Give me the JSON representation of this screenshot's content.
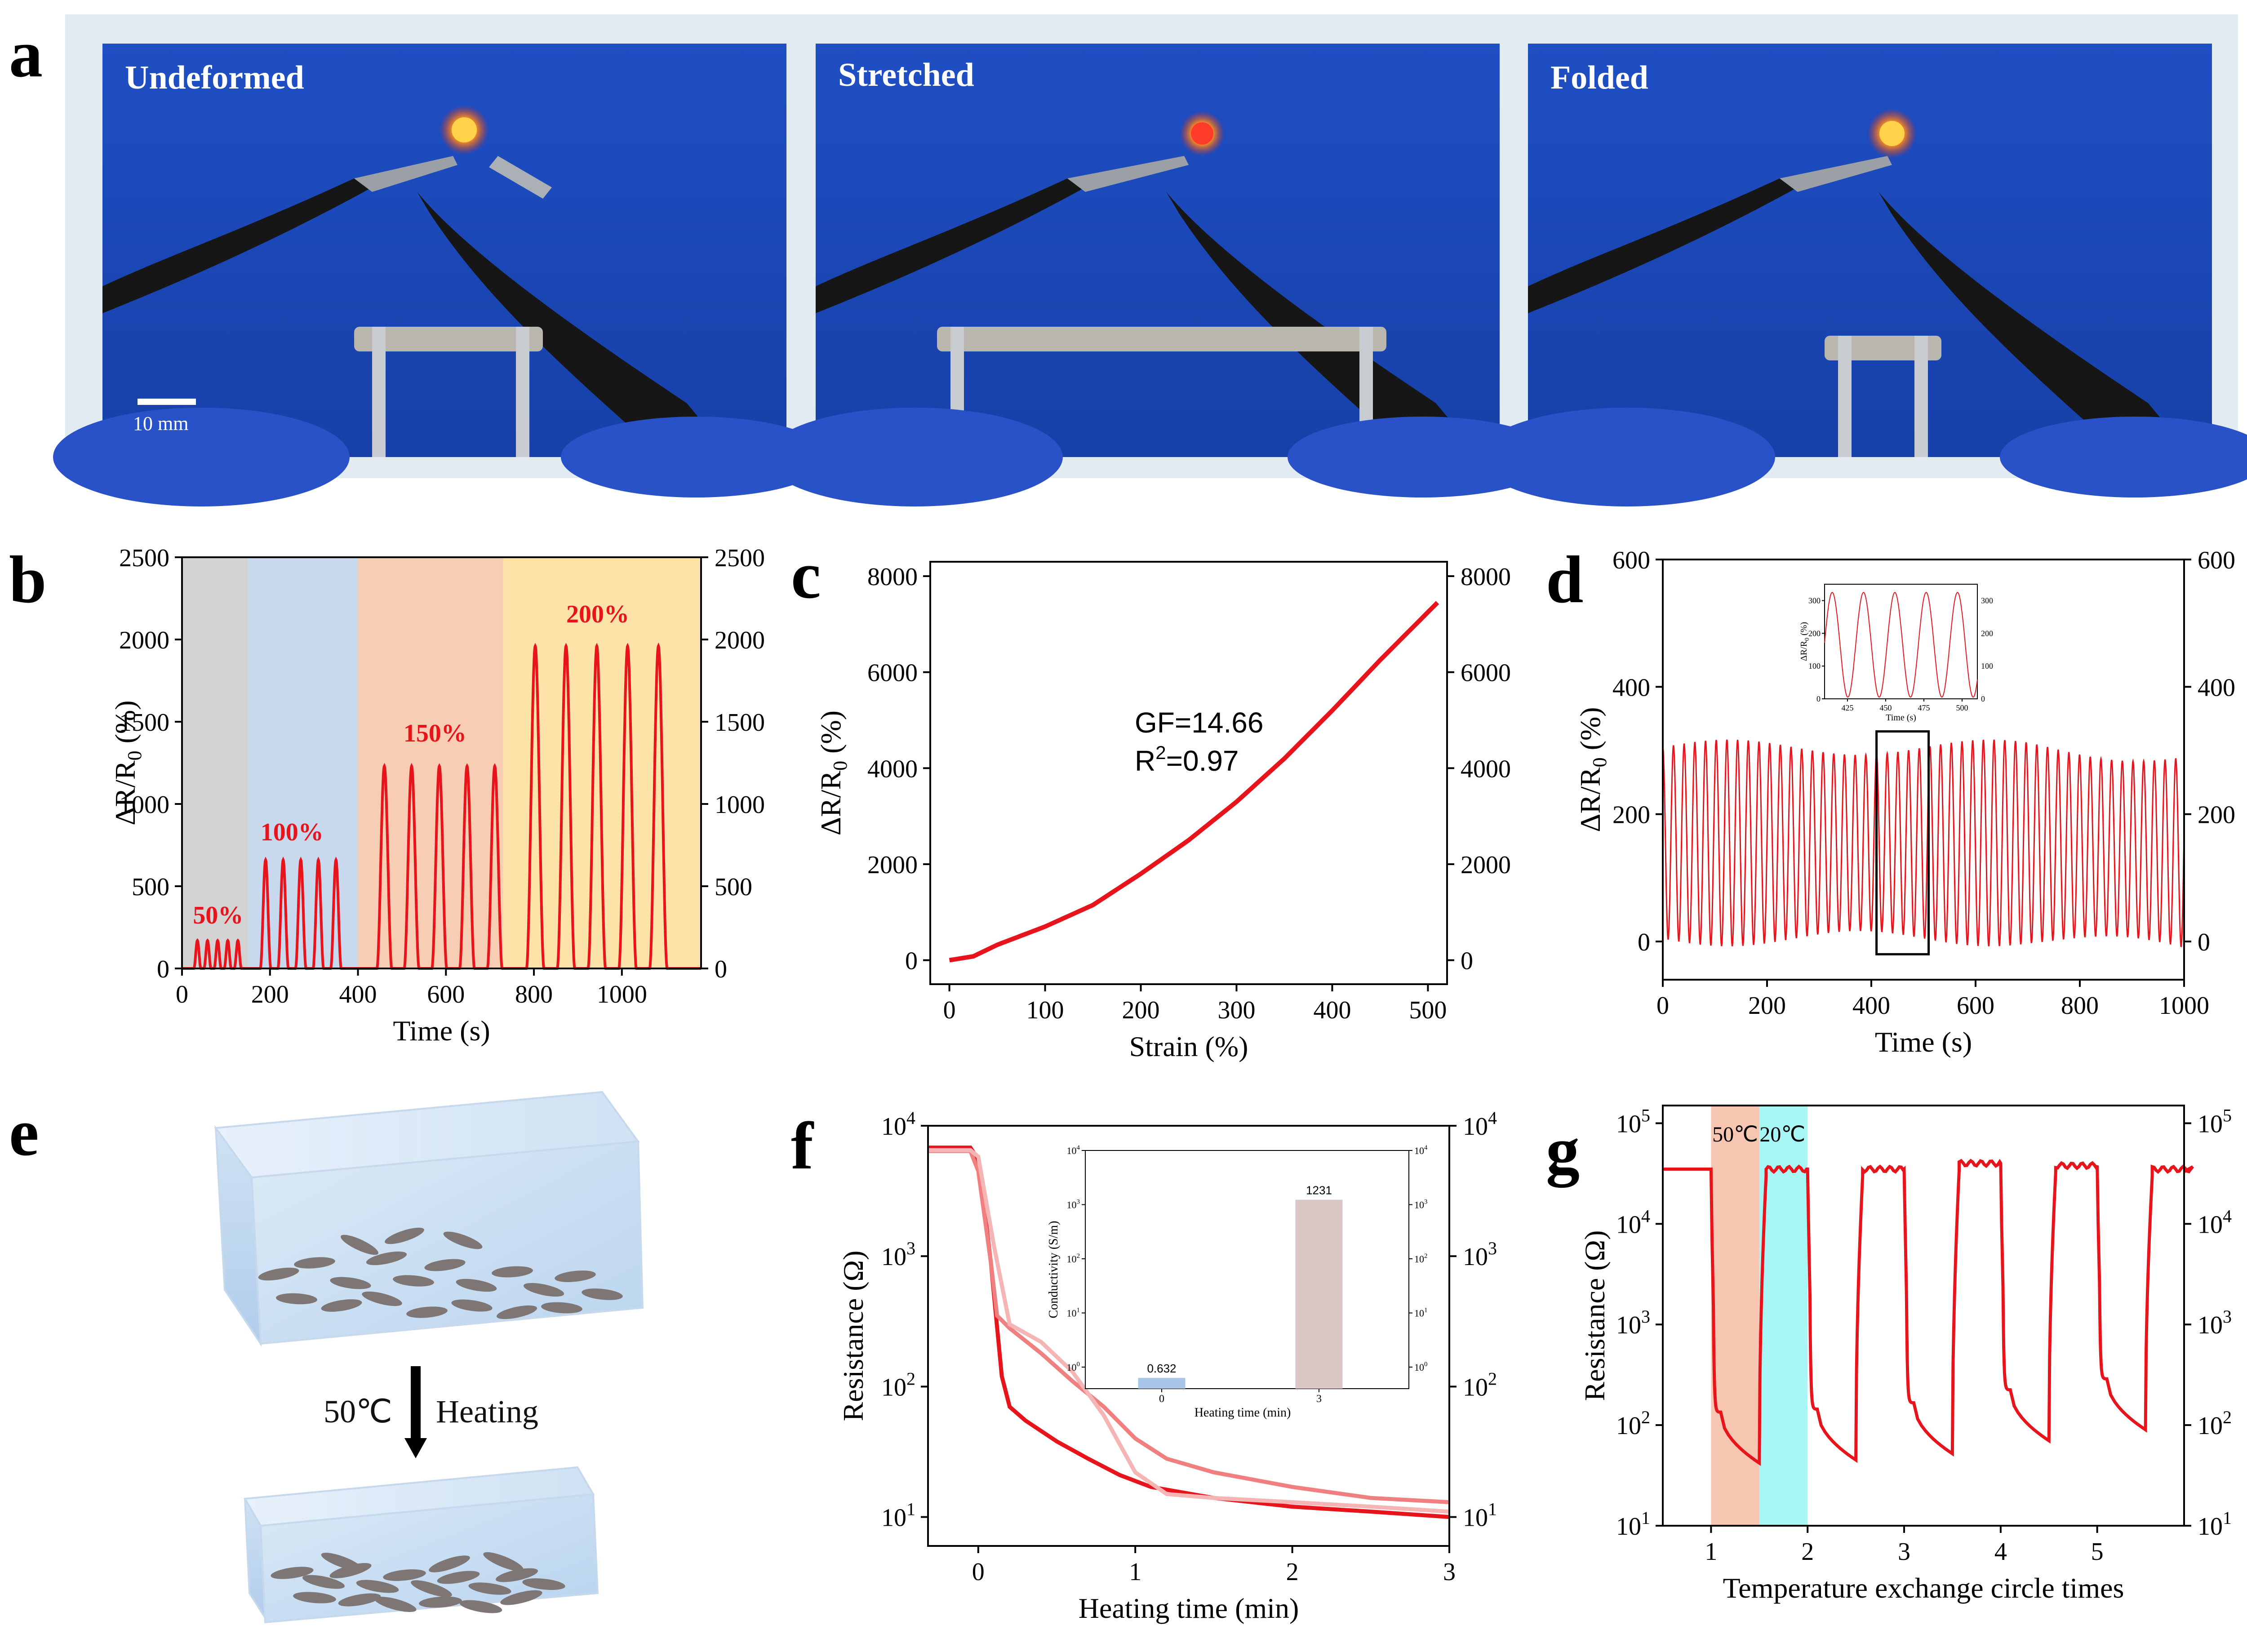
{
  "panel_letters": {
    "a": "a",
    "b": "b",
    "c": "c",
    "d": "d",
    "e": "e",
    "f": "f",
    "g": "g"
  },
  "panel_a": {
    "photos": [
      {
        "label": "Undeformed"
      },
      {
        "label": "Stretched"
      },
      {
        "label": "Folded"
      }
    ],
    "scale_bar": "10 mm"
  },
  "panel_e": {
    "arrow_left": "50℃",
    "arrow_right": "Heating"
  },
  "chart_data": [
    {
      "id": "b",
      "type": "line",
      "xlabel": "Time (s)",
      "ylabel": "ΔR/R0 (%)",
      "xlim": [
        0,
        1180
      ],
      "ylim": [
        0,
        2500
      ],
      "xticks": [
        0,
        200,
        400,
        600,
        800,
        1000
      ],
      "yticks": [
        0,
        500,
        1000,
        1500,
        2000,
        2500
      ],
      "bands": [
        {
          "x0": 0,
          "x1": 150,
          "color": "#d3d3d3"
        },
        {
          "x0": 150,
          "x1": 400,
          "color": "#c8d9ee"
        },
        {
          "x0": 400,
          "x1": 730,
          "color": "#f7cdb4"
        },
        {
          "x0": 730,
          "x1": 1180,
          "color": "#fde3a7"
        }
      ],
      "groups": [
        {
          "label": "50%",
          "peak": 170,
          "centers": [
            35,
            58,
            81,
            104,
            127
          ],
          "halfwidth": 8
        },
        {
          "label": "100%",
          "peak": 660,
          "centers": [
            190,
            230,
            270,
            310,
            350
          ],
          "halfwidth": 12
        },
        {
          "label": "150%",
          "peak": 1230,
          "centers": [
            460,
            522,
            585,
            648,
            711
          ],
          "halfwidth": 17
        },
        {
          "label": "200%",
          "peak": 1960,
          "centers": [
            803,
            873,
            943,
            1013,
            1083
          ],
          "halfwidth": 20
        }
      ],
      "color": "#e8141c"
    },
    {
      "id": "c",
      "type": "line",
      "xlabel": "Strain (%)",
      "ylabel": "ΔR/R0 (%)",
      "xlim": [
        -20,
        520
      ],
      "ylim": [
        -500,
        8300
      ],
      "xticks": [
        0,
        100,
        200,
        300,
        400,
        500
      ],
      "yticks": [
        0,
        2000,
        4000,
        6000,
        8000
      ],
      "x": [
        0,
        25,
        50,
        100,
        150,
        200,
        250,
        300,
        350,
        400,
        450,
        510
      ],
      "y": [
        0,
        80,
        320,
        700,
        1150,
        1800,
        2500,
        3300,
        4200,
        5200,
        6250,
        7450
      ],
      "annotation_gf": "GF=14.66",
      "annotation_r2": "R2=0.97",
      "color": "#e8141c"
    },
    {
      "id": "d",
      "type": "line",
      "xlabel": "Time (s)",
      "ylabel": "ΔR/R0 (%)",
      "xlim": [
        0,
        1000
      ],
      "ylim": [
        -60,
        600
      ],
      "xticks": [
        0,
        200,
        400,
        600,
        800,
        1000
      ],
      "yticks": [
        0,
        200,
        400,
        600
      ],
      "period": 20.5,
      "min": 5,
      "max": 305,
      "color": "#e8141c",
      "inset": {
        "xlabel": "Time (s)",
        "ylabel": "ΔR/R0 (%)",
        "xlim": [
          410,
          510
        ],
        "ylim": [
          0,
          350
        ],
        "xticks": [
          425,
          450,
          475,
          500
        ],
        "yticks": [
          0,
          100,
          200,
          300
        ]
      }
    },
    {
      "id": "f",
      "type": "line",
      "scale": "log",
      "xlabel": "Heating time (min)",
      "ylabel": "Resistance (Ω)",
      "xlim": [
        -0.32,
        3
      ],
      "ylim": [
        6,
        10000
      ],
      "xticks": [
        0,
        1,
        2,
        3
      ],
      "series": [
        {
          "color": "#e8141c",
          "x": [
            -0.32,
            -0.05,
            0.0,
            0.08,
            0.15,
            0.2,
            0.3,
            0.5,
            0.7,
            0.9,
            1.1,
            1.5,
            2.0,
            2.5,
            3.0
          ],
          "y": [
            6800,
            6800,
            5500,
            900,
            120,
            70,
            55,
            38,
            28,
            21,
            17,
            14,
            12,
            11,
            10
          ]
        },
        {
          "color": "#f08080",
          "x": [
            -0.32,
            -0.05,
            0.0,
            0.08,
            0.12,
            0.2,
            0.4,
            0.6,
            0.8,
            1.0,
            1.2,
            1.5,
            2.0,
            2.5,
            3.0
          ],
          "y": [
            6400,
            6400,
            4500,
            900,
            350,
            280,
            180,
            110,
            70,
            40,
            28,
            22,
            17,
            14,
            13
          ]
        },
        {
          "color": "#f5b5b5",
          "x": [
            -0.32,
            -0.05,
            0.0,
            0.1,
            0.2,
            0.4,
            0.6,
            0.8,
            1.0,
            1.2,
            1.5,
            2.0,
            2.5,
            3.0
          ],
          "y": [
            6500,
            6500,
            5800,
            1200,
            300,
            220,
            130,
            60,
            22,
            15,
            14,
            13,
            12,
            11
          ]
        }
      ],
      "inset": {
        "type": "bar",
        "xlabel": "Heating time (min)",
        "ylabel": "Conductivity (S/m)",
        "categories": [
          "0",
          "3"
        ],
        "values": [
          0.632,
          1231
        ],
        "value_labels": [
          "0.632",
          "1231"
        ],
        "colors": [
          "#a9c6ea",
          "#dcc5c5"
        ],
        "ylim": [
          0.4,
          10000
        ],
        "ytick_labels": [
          "100",
          "101",
          "102",
          "103",
          "104"
        ]
      }
    },
    {
      "id": "g",
      "type": "line",
      "scale": "log",
      "xlabel": "Temperature exchange circle times",
      "ylabel": "Resistance (Ω)",
      "xlim": [
        0.5,
        5.9
      ],
      "ylim": [
        10,
        150000
      ],
      "xticks": [
        1,
        2,
        3,
        4,
        5
      ],
      "band_labels": [
        "50℃",
        "20℃"
      ],
      "bands": [
        {
          "x0": 1.0,
          "x1": 1.5,
          "color": "#f6c6b0"
        },
        {
          "x0": 1.5,
          "x1": 2.0,
          "color": "#a8f5f5"
        }
      ],
      "cycles": [
        {
          "start": 1.0,
          "hot_end": 1.5,
          "low": 42,
          "high": 35000
        },
        {
          "start": 2.0,
          "hot_end": 2.5,
          "low": 45,
          "high": 35000
        },
        {
          "start": 3.0,
          "hot_end": 3.5,
          "low": 52,
          "high": 40000
        },
        {
          "start": 4.0,
          "hot_end": 4.5,
          "low": 70,
          "high": 38000
        },
        {
          "start": 5.0,
          "hot_end": 5.5,
          "low": 90,
          "high": 35000
        }
      ],
      "color": "#e8141c"
    }
  ]
}
